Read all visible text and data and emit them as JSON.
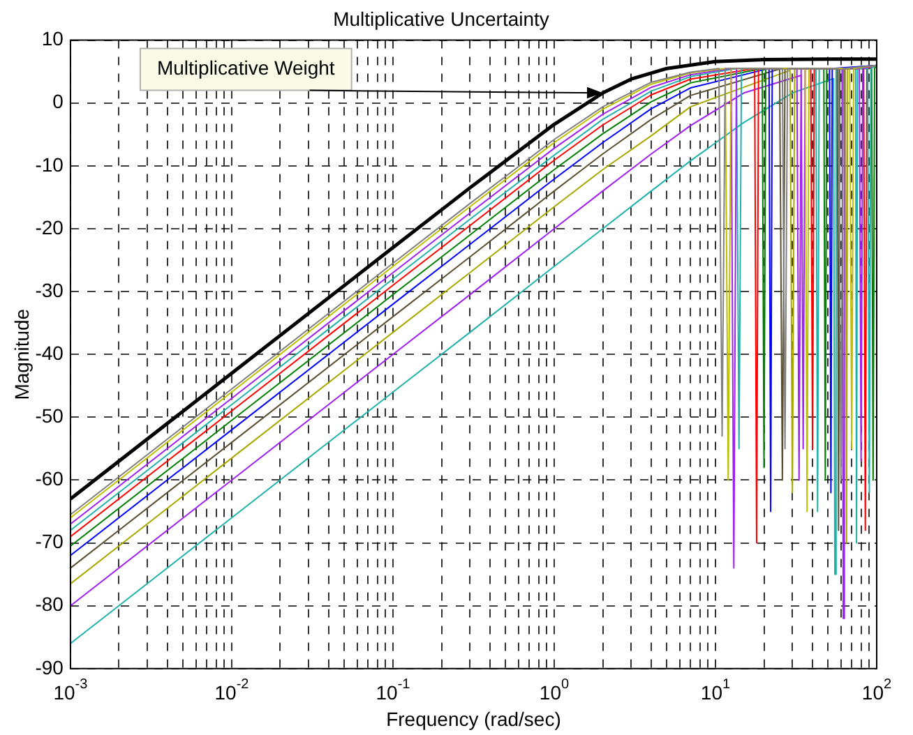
{
  "chart_data": {
    "type": "line",
    "title": "Multiplicative Uncertainty",
    "xlabel": "Frequency (rad/sec)",
    "ylabel": "Magnitude",
    "log": "x",
    "grid": true,
    "line_style": "solid",
    "marker": "none",
    "legend": false,
    "xlim": [
      0.001,
      100
    ],
    "ylim": [
      -90,
      10
    ],
    "xticks": [
      {
        "value": 0.001,
        "label": "10$^{-3}$"
      },
      {
        "value": 0.002,
        "label": null
      },
      {
        "value": 0.003,
        "label": null
      },
      {
        "value": 0.004,
        "label": null
      },
      {
        "value": 0.005,
        "label": null
      },
      {
        "value": 0.006,
        "label": null
      },
      {
        "value": 0.007,
        "label": null
      },
      {
        "value": 0.008,
        "label": null
      },
      {
        "value": 0.009,
        "label": null
      },
      {
        "value": 0.01,
        "label": "10$^{-2}$"
      },
      {
        "value": 0.02,
        "label": null
      },
      {
        "value": 0.03,
        "label": null
      },
      {
        "value": 0.04,
        "label": null
      },
      {
        "value": 0.05,
        "label": null
      },
      {
        "value": 0.06,
        "label": null
      },
      {
        "value": 0.07,
        "label": null
      },
      {
        "value": 0.08,
        "label": null
      },
      {
        "value": 0.09,
        "label": null
      },
      {
        "value": 0.1,
        "label": "10$^{-1}$"
      },
      {
        "value": 0.2,
        "label": null
      },
      {
        "value": 0.3,
        "label": null
      },
      {
        "value": 0.4,
        "label": null
      },
      {
        "value": 0.5,
        "label": null
      },
      {
        "value": 0.6,
        "label": null
      },
      {
        "value": 0.7,
        "label": null
      },
      {
        "value": 0.8,
        "label": null
      },
      {
        "value": 0.9,
        "label": null
      },
      {
        "value": 1,
        "label": "10$^{0}$"
      },
      {
        "value": 2,
        "label": null
      },
      {
        "value": 3,
        "label": null
      },
      {
        "value": 4,
        "label": null
      },
      {
        "value": 5,
        "label": null
      },
      {
        "value": 6,
        "label": null
      },
      {
        "value": 7,
        "label": null
      },
      {
        "value": 8,
        "label": null
      },
      {
        "value": 9,
        "label": null
      },
      {
        "value": 10,
        "label": "10$^{1}$"
      },
      {
        "value": 20,
        "label": null
      },
      {
        "value": 30,
        "label": null
      },
      {
        "value": 40,
        "label": null
      },
      {
        "value": 50,
        "label": null
      },
      {
        "value": 60,
        "label": null
      },
      {
        "value": 70,
        "label": null
      },
      {
        "value": 80,
        "label": null
      },
      {
        "value": 90,
        "label": null
      },
      {
        "value": 100,
        "label": "10$^{2}$"
      }
    ],
    "yticks": [
      -90,
      -80,
      -70,
      -60,
      -50,
      -40,
      -30,
      -20,
      -10,
      0,
      10
    ],
    "annotations": [
      {
        "text": "Multiplicative Weight",
        "x": 2,
        "y": 1.6
      }
    ],
    "series": [
      {
        "color": "#808080",
        "x": [
          0.001,
          0.01,
          0.1,
          0.3,
          1,
          2,
          4,
          7,
          10.5,
          11,
          11.5,
          26,
          27,
          28,
          58,
          60,
          62,
          100
        ],
        "values": [
          -65.5,
          -45.5,
          -25.5,
          -16,
          -5.8,
          -0.6,
          3.3,
          4.9,
          5.5,
          -53,
          5.5,
          5.5,
          -55,
          5.5,
          5.5,
          -60,
          5.5,
          6
        ]
      },
      {
        "color": "#bfbf00",
        "x": [
          0.001,
          0.01,
          0.1,
          0.3,
          1,
          2,
          4,
          7,
          11.5,
          12,
          12.5,
          36,
          37,
          38,
          68,
          70,
          72,
          100
        ],
        "values": [
          -66,
          -46,
          -26,
          -16.5,
          -6.3,
          -1,
          3,
          4.8,
          5.5,
          -60,
          5.5,
          5.5,
          -65,
          5.5,
          5.5,
          -55,
          5.5,
          6
        ]
      },
      {
        "color": "#a020f0",
        "x": [
          0.001,
          0.01,
          0.1,
          0.3,
          1,
          2,
          4,
          7,
          12.5,
          13,
          13.5,
          32,
          33,
          34,
          78,
          80,
          82,
          100
        ],
        "values": [
          -67,
          -47,
          -27,
          -17.5,
          -7.2,
          -1.8,
          2.5,
          4.5,
          5.5,
          -74,
          5.5,
          5.5,
          -60,
          5.5,
          5.5,
          -57,
          5.5,
          6
        ]
      },
      {
        "color": "#20b2aa",
        "x": [
          0.001,
          0.01,
          0.1,
          0.3,
          1,
          2,
          4,
          7,
          13.5,
          14,
          14.5,
          42,
          43,
          44,
          88,
          90,
          92,
          100
        ],
        "values": [
          -68,
          -48,
          -28,
          -18.5,
          -8.3,
          -2.6,
          1.9,
          4.2,
          5.5,
          -55,
          5.5,
          5.5,
          -65,
          5.5,
          5.5,
          -62,
          5.5,
          6
        ]
      },
      {
        "color": "#ff0000",
        "x": [
          0.001,
          0.01,
          0.1,
          0.3,
          1,
          2,
          4,
          7,
          17.5,
          18,
          18.5,
          39,
          40,
          41,
          83,
          85,
          87,
          100
        ],
        "values": [
          -69,
          -49,
          -29,
          -19.5,
          -9.1,
          -3.5,
          1.3,
          3.8,
          5.5,
          -70,
          5.5,
          5.5,
          -55,
          5.5,
          5.5,
          -68,
          5.5,
          6
        ]
      },
      {
        "color": "#008000",
        "x": [
          0.001,
          0.01,
          0.1,
          0.3,
          1,
          2,
          4,
          7,
          19.5,
          20,
          20.5,
          47,
          48,
          49,
          93,
          95,
          97,
          100
        ],
        "values": [
          -70.5,
          -50.5,
          -30.5,
          -21,
          -10.6,
          -4.9,
          0.2,
          3.2,
          5.5,
          -58,
          5.5,
          5.5,
          -60,
          5.5,
          5.5,
          -60,
          5.5,
          6
        ]
      },
      {
        "color": "#0000ff",
        "x": [
          0.001,
          0.01,
          0.1,
          0.3,
          1,
          2,
          4,
          7,
          21.5,
          22,
          22.5,
          51,
          52,
          53,
          100
        ],
        "values": [
          -72,
          -52,
          -32,
          -22.5,
          -12.1,
          -6.3,
          -0.9,
          2.4,
          5.5,
          -65,
          5.5,
          5.5,
          -62,
          5.5,
          6
        ]
      },
      {
        "color": "#5a5030",
        "x": [
          0.001,
          0.01,
          0.1,
          0.3,
          1,
          2,
          4,
          7,
          25,
          26,
          27,
          57,
          58,
          59,
          100
        ],
        "values": [
          -74,
          -54,
          -34,
          -24.5,
          -14,
          -8.1,
          -2.6,
          1.2,
          5.4,
          -60,
          5.5,
          5.5,
          -68,
          5.5,
          6
        ]
      },
      {
        "color": "#a8a800",
        "x": [
          0.001,
          0.01,
          0.1,
          0.3,
          1,
          2,
          4,
          7,
          29,
          30,
          31,
          64,
          65,
          66,
          100
        ],
        "values": [
          -76.5,
          -56.5,
          -36.5,
          -27,
          -16.5,
          -10.6,
          -5.2,
          -0.6,
          5.2,
          -62,
          5.5,
          5.5,
          -70,
          5.5,
          6
        ]
      },
      {
        "color": "#a020f0",
        "x": [
          0.001,
          0.01,
          0.1,
          0.3,
          1,
          2,
          4,
          7,
          15,
          34,
          35,
          36,
          61,
          62,
          63,
          100
        ],
        "values": [
          -80,
          -60,
          -40,
          -30.5,
          -20,
          -14,
          -8.1,
          -3.6,
          1.6,
          4.4,
          -55,
          5.5,
          5.5,
          -82,
          5.5,
          6
        ]
      },
      {
        "color": "#20b2aa",
        "x": [
          0.001,
          0.01,
          0.1,
          0.3,
          1,
          2,
          4,
          7,
          15,
          30,
          54,
          55,
          56,
          74,
          75,
          76,
          100
        ],
        "values": [
          -86,
          -66,
          -46,
          -36.5,
          -26,
          -20,
          -14,
          -9.2,
          -3.1,
          1.6,
          3.9,
          -75,
          5.5,
          5.5,
          -70,
          5.5,
          6
        ]
      },
      {
        "color": "#000000",
        "x": [
          0.001,
          0.01,
          0.1,
          0.3,
          1,
          2,
          3,
          5,
          10,
          20,
          50,
          100
        ],
        "values": [
          -63,
          -43,
          -23,
          -13.5,
          -3.4,
          1.6,
          3.8,
          5.5,
          6.6,
          6.9,
          7,
          7
        ]
      }
    ]
  }
}
